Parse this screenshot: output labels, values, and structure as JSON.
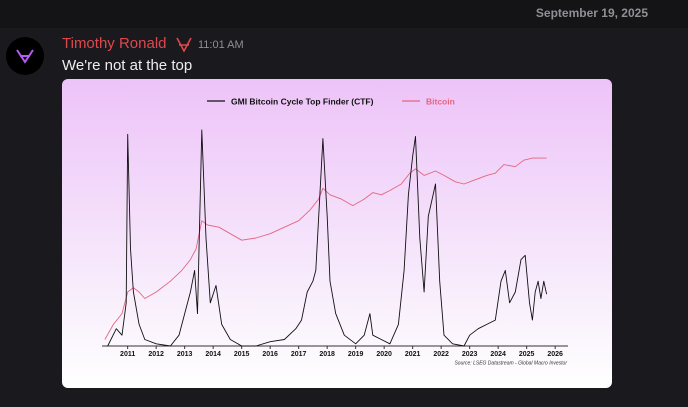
{
  "header": {
    "date": "September 19, 2025"
  },
  "message": {
    "author": "Timothy Ronald",
    "time": "11:01 AM",
    "text": "We're not at the top"
  },
  "chart_data": {
    "type": "line",
    "source": "Source: LSEG Datastream - Global Macro Investor",
    "xlim": [
      2010.1,
      2026.45
    ],
    "xticks": [
      2011,
      2012,
      2013,
      2014,
      2015,
      2016,
      2017,
      2018,
      2019,
      2020,
      2021,
      2022,
      2023,
      2024,
      2025,
      2026
    ],
    "ylim": [
      0,
      100
    ],
    "series": [
      {
        "name": "GMI Bitcoin Cycle Top Finder (CTF)",
        "color": "#111111",
        "x": [
          2010.3,
          2010.6,
          2010.8,
          2010.95,
          2011.0,
          2011.1,
          2011.2,
          2011.4,
          2011.6,
          2012.0,
          2012.5,
          2012.8,
          2013.0,
          2013.2,
          2013.35,
          2013.45,
          2013.6,
          2013.75,
          2013.9,
          2014.1,
          2014.3,
          2014.6,
          2015.0,
          2015.5,
          2016.0,
          2016.5,
          2016.9,
          2017.1,
          2017.3,
          2017.5,
          2017.6,
          2017.85,
          2018.0,
          2018.1,
          2018.3,
          2018.6,
          2019.0,
          2019.3,
          2019.5,
          2019.6,
          2019.9,
          2020.2,
          2020.5,
          2020.7,
          2020.85,
          2021.0,
          2021.1,
          2021.25,
          2021.4,
          2021.55,
          2021.8,
          2021.95,
          2022.1,
          2022.4,
          2022.8,
          2023.0,
          2023.3,
          2023.6,
          2023.9,
          2024.1,
          2024.25,
          2024.4,
          2024.6,
          2024.8,
          2024.95,
          2025.1,
          2025.2,
          2025.3,
          2025.4,
          2025.5,
          2025.6,
          2025.7
        ],
        "values": [
          0,
          8,
          5,
          20,
          98,
          45,
          25,
          10,
          3,
          1,
          0,
          5,
          15,
          25,
          35,
          15,
          100,
          50,
          20,
          28,
          10,
          3,
          0,
          0,
          2,
          3,
          8,
          12,
          25,
          30,
          35,
          96,
          60,
          30,
          15,
          5,
          1,
          5,
          15,
          5,
          3,
          1,
          10,
          35,
          70,
          88,
          97,
          50,
          25,
          60,
          75,
          30,
          5,
          1,
          0,
          5,
          8,
          10,
          12,
          30,
          35,
          20,
          25,
          40,
          42,
          20,
          12,
          25,
          30,
          22,
          30,
          24
        ]
      },
      {
        "name": "Bitcoin",
        "color": "#e4657f",
        "x": [
          2010.2,
          2010.5,
          2010.8,
          2011.0,
          2011.2,
          2011.4,
          2011.6,
          2012.0,
          2012.5,
          2012.9,
          2013.2,
          2013.4,
          2013.6,
          2013.8,
          2014.2,
          2014.6,
          2015.0,
          2015.5,
          2016.0,
          2016.5,
          2017.0,
          2017.4,
          2017.7,
          2017.85,
          2018.1,
          2018.5,
          2018.9,
          2019.3,
          2019.6,
          2019.9,
          2020.2,
          2020.6,
          2020.9,
          2021.1,
          2021.4,
          2021.8,
          2022.1,
          2022.5,
          2022.8,
          2023.2,
          2023.6,
          2023.9,
          2024.2,
          2024.6,
          2024.9,
          2025.2,
          2025.5,
          2025.7
        ],
        "values": [
          3,
          10,
          15,
          25,
          27,
          25,
          22,
          25,
          30,
          35,
          40,
          45,
          58,
          56,
          55,
          52,
          49,
          50,
          52,
          55,
          58,
          63,
          68,
          73,
          70,
          68,
          65,
          68,
          71,
          70,
          72,
          75,
          80,
          82,
          79,
          81,
          79,
          76,
          75,
          77,
          79,
          80,
          84,
          83,
          86,
          87,
          87,
          87
        ]
      }
    ]
  }
}
